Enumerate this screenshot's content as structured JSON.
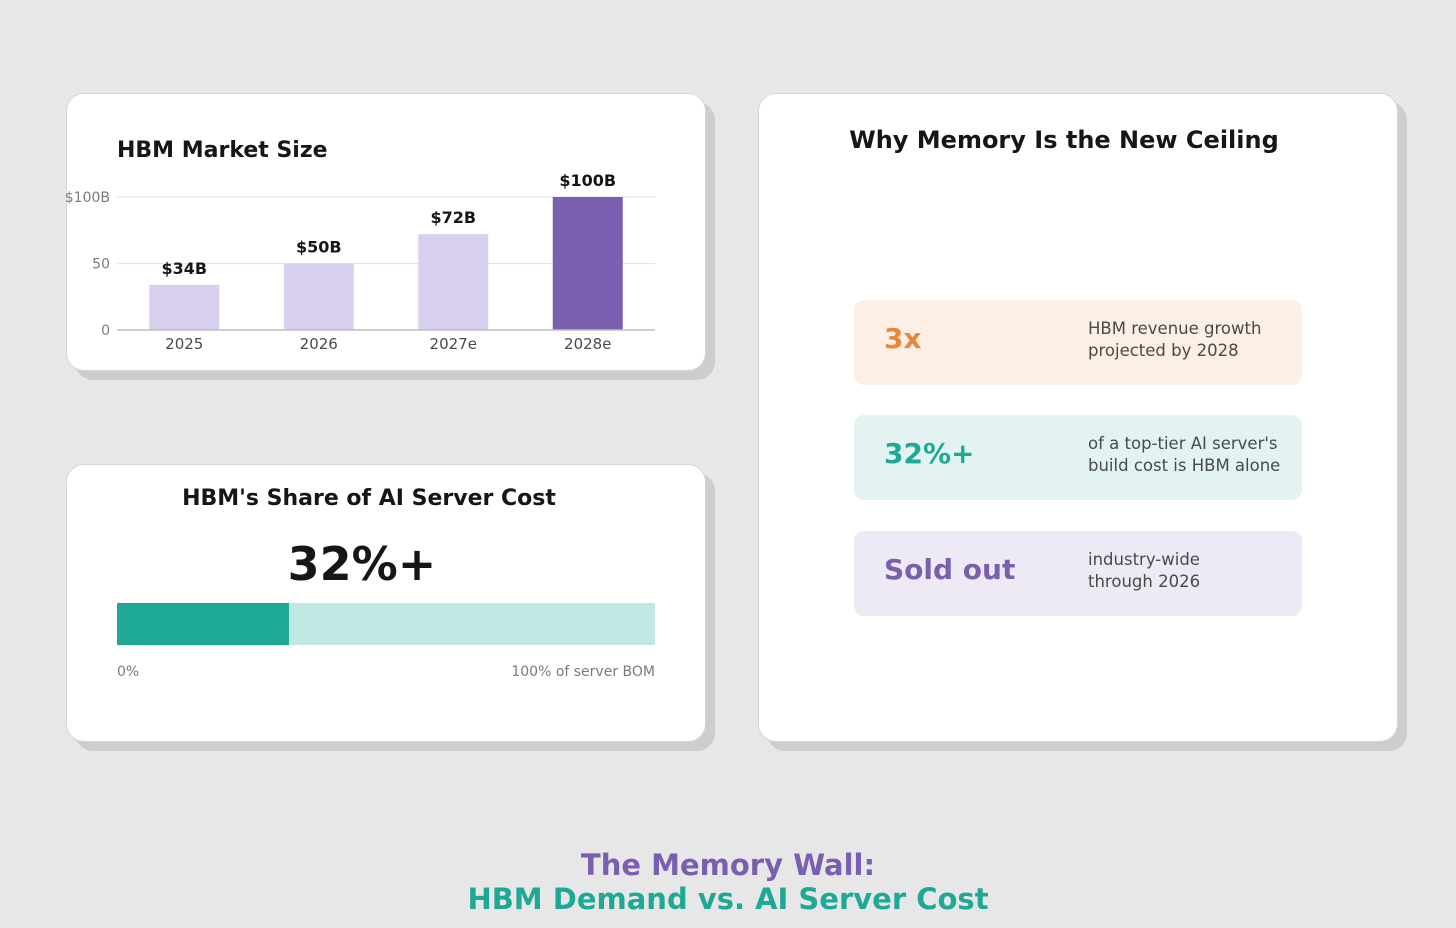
{
  "market": {
    "title": "HBM Market Size"
  },
  "chart_data": {
    "type": "bar",
    "title": "HBM Market Size",
    "categories": [
      "2025",
      "2026",
      "2027e",
      "2028e"
    ],
    "values": [
      34,
      50,
      72,
      100
    ],
    "data_labels": [
      "$34B",
      "$50B",
      "$72B",
      "$100B"
    ],
    "y_ticks": [
      0,
      50,
      100
    ],
    "y_tick_labels": [
      "0",
      "50",
      "$100B"
    ],
    "ylim": [
      0,
      100
    ],
    "xlabel": "",
    "ylabel": "",
    "grid": true,
    "colors": {
      "bar": "#d9cfef",
      "highlight": "#7a5eaf",
      "grid": "#e6e6e6",
      "axis": "#bdbdbd",
      "tick_text": "#7b7b7b",
      "category_text": "#4a4a4a",
      "label_text": "#161616"
    },
    "highlight_index": 3
  },
  "share": {
    "title": "HBM's Share of AI Server Cost",
    "big_value": "32%+",
    "fraction": 0.32,
    "min_label": "0%",
    "max_label": "100% of server BOM",
    "colors": {
      "fill": "#1ea996",
      "track": "#c0e8e2"
    }
  },
  "why": {
    "title": "Why Memory Is the New Ceiling",
    "stats": [
      {
        "value": "3x",
        "line1": "HBM revenue growth",
        "line2": "projected by 2028",
        "color": "#e8873a",
        "bg": "#fcefe6"
      },
      {
        "value": "32%+",
        "line1": "of a top-tier AI server's",
        "line2": "build cost is HBM alone",
        "color": "#1ea996",
        "bg": "#e3f3f1"
      },
      {
        "value": "Sold out",
        "line1": "industry-wide",
        "line2": "through 2026",
        "color": "#7a5eaf",
        "bg": "#ede9f5"
      }
    ]
  },
  "footer": {
    "line1": "The Memory Wall:",
    "line2": "HBM Demand vs. AI Server Cost"
  }
}
